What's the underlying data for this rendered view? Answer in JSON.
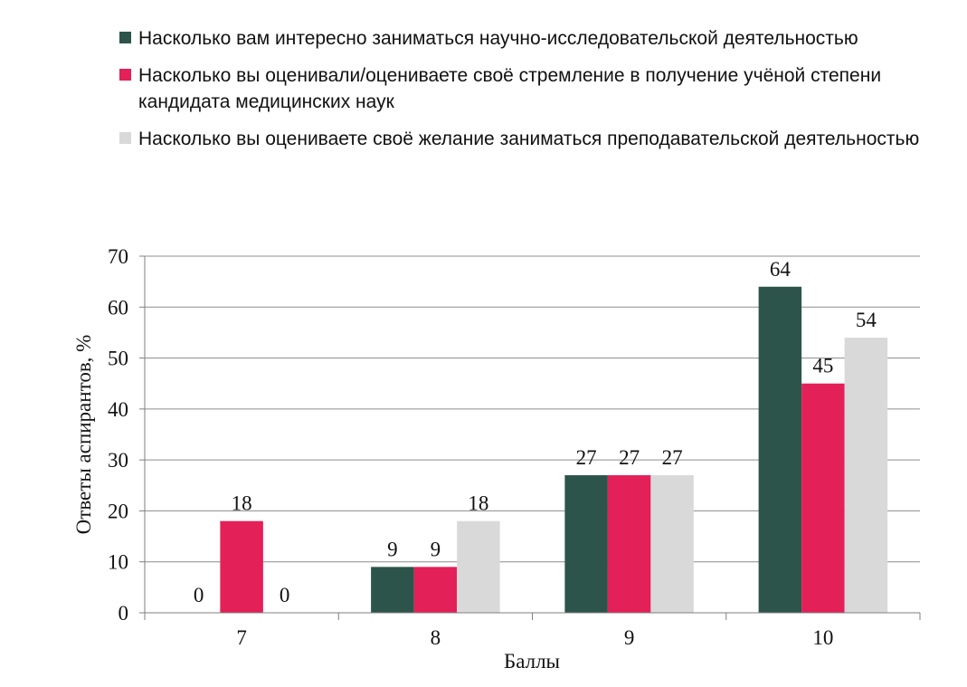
{
  "legend": {
    "items": [
      {
        "label": "Насколько вам интересно заниматься научно-исследовательской деятельностью",
        "color": "#2d544a"
      },
      {
        "label": "Насколько вы оценивали/оцениваете своё стремление в получение учёной степени кандидата медицинских наук",
        "color": "#e32057"
      },
      {
        "label": "Насколько вы оцениваете своё желание заниматься преподавательской деятельностью",
        "color": "#d9d9d9"
      }
    ]
  },
  "chart_data": {
    "type": "bar",
    "categories": [
      "7",
      "8",
      "9",
      "10"
    ],
    "series": [
      {
        "name": "Насколько вам интересно заниматься научно-исследовательской деятельностью",
        "values": [
          0,
          9,
          27,
          64
        ],
        "color": "#2d544a"
      },
      {
        "name": "Насколько вы оценивали/оцениваете своё стремление в получение учёной степени кандидата медицинских наук",
        "values": [
          18,
          9,
          27,
          45
        ],
        "color": "#e32057"
      },
      {
        "name": "Насколько вы оцениваете своё желание заниматься преподавательской деятельностью",
        "values": [
          0,
          18,
          27,
          54
        ],
        "color": "#d9d9d9"
      }
    ],
    "xlabel": "Баллы",
    "ylabel": "Ответы аспирантов, %",
    "ylim": [
      0,
      70
    ],
    "yticks": [
      0,
      10,
      20,
      30,
      40,
      50,
      60,
      70
    ],
    "grid": true,
    "legend_position": "top"
  }
}
